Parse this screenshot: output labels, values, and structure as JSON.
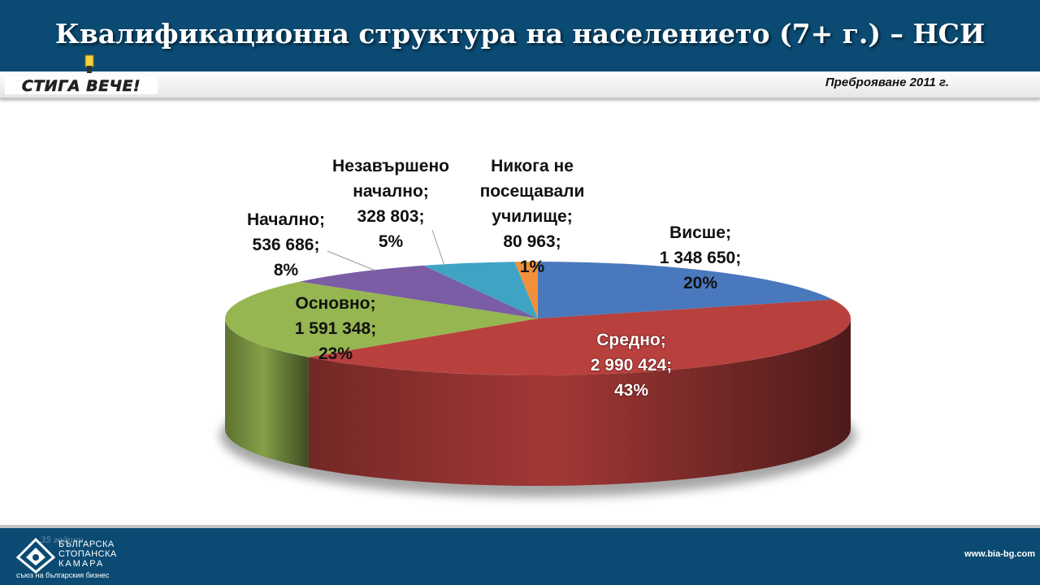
{
  "header": {
    "title": "Квалификационна структура на населението (7+ г.) – НСИ",
    "logo_text": "СТИГА ВЕЧЕ!",
    "census_label": "Преброяване  2011 г."
  },
  "chart_data": {
    "type": "pie",
    "title": "",
    "three_d": true,
    "legend": "none",
    "slices": [
      {
        "name": "Висше",
        "value": 1348650,
        "value_label": "1 348 650;",
        "percent": 20,
        "percent_label": "20%",
        "label_lines": [
          "Висше;",
          "1 348 650;",
          "20%"
        ],
        "color": "#4a78bd"
      },
      {
        "name": "Средно",
        "value": 2990424,
        "value_label": "2 990 424;",
        "percent": 43,
        "percent_label": "43%",
        "label_lines": [
          "Средно;",
          "2 990 424;",
          "43%"
        ],
        "color": "#b8403d"
      },
      {
        "name": "Основно",
        "value": 1591348,
        "value_label": "1 591 348;",
        "percent": 23,
        "percent_label": "23%",
        "label_lines": [
          "Основно;",
          "1 591 348;",
          "23%"
        ],
        "color": "#96b651"
      },
      {
        "name": "Начално",
        "value": 536686,
        "value_label": "536 686;",
        "percent": 8,
        "percent_label": "8%",
        "label_lines": [
          "Начално;",
          "536 686;",
          "8%"
        ],
        "color": "#7a5da4"
      },
      {
        "name": "Незавършено начално",
        "value": 328803,
        "value_label": "328 803;",
        "percent": 5,
        "percent_label": "5%",
        "label_lines": [
          "Незавършено",
          "начално;",
          "328 803;",
          "5%"
        ],
        "color": "#3fa4c4"
      },
      {
        "name": "Никога не посещавали училище",
        "value": 80963,
        "value_label": "80 963;",
        "percent": 1,
        "percent_label": "1%",
        "label_lines": [
          "Никога не",
          "посещавали",
          "училище;",
          "80 963;",
          "1%"
        ],
        "color": "#f0903a"
      }
    ]
  },
  "footer": {
    "org_line1": "БЪЛГАРСКА",
    "org_line2": "СТОПАНСКА",
    "org_line3": "КАМАРА",
    "org_tagline": "съюз на българския бизнес",
    "anniversary": "35 години",
    "website": "www.bia-bg.com"
  }
}
